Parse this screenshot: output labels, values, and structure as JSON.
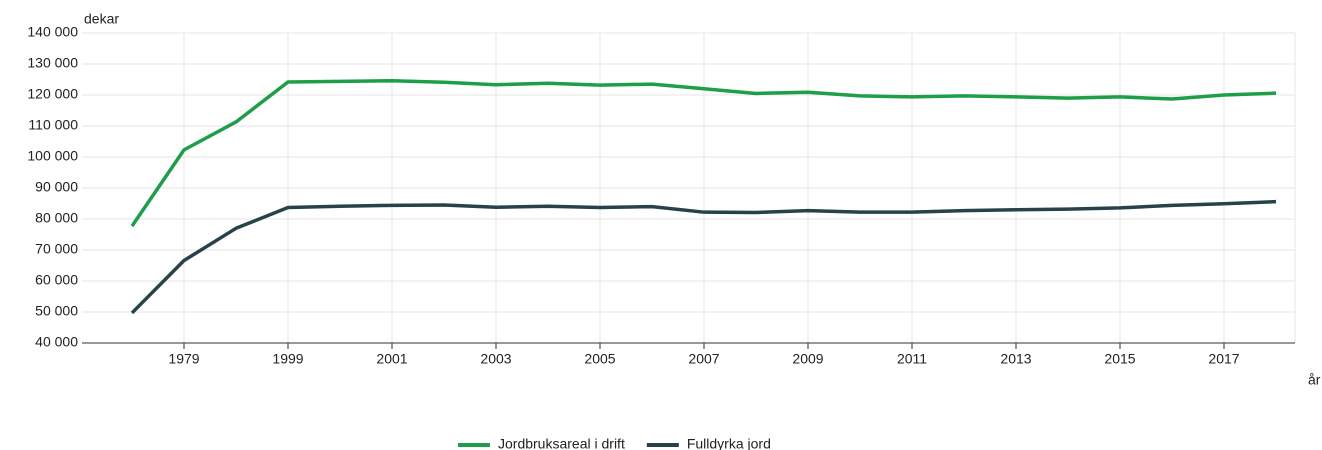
{
  "chart_data": {
    "type": "line",
    "y_label": "dekar",
    "x_label": "år",
    "categories": [
      null,
      "1979",
      null,
      "1999",
      null,
      "2001",
      null,
      "2003",
      null,
      "2005",
      null,
      "2007",
      null,
      "2009",
      null,
      "2011",
      null,
      "2013",
      null,
      "2015",
      null,
      "2017",
      null
    ],
    "series": [
      {
        "name": "Jordbruksareal i drift",
        "color": "#1f9e4a",
        "values": [
          77700,
          102300,
          111300,
          124200,
          124400,
          124600,
          124100,
          123300,
          123800,
          123200,
          123500,
          122000,
          120500,
          120900,
          119700,
          119400,
          119700,
          119400,
          119000,
          119400,
          118700,
          120000,
          120600
        ]
      },
      {
        "name": "Fulldyrka jord",
        "color": "#27434a",
        "values": [
          49700,
          66600,
          77000,
          83700,
          84100,
          84400,
          84500,
          83800,
          84100,
          83700,
          84000,
          82200,
          82100,
          82700,
          82200,
          82200,
          82700,
          83000,
          83200,
          83600,
          84400,
          84900,
          85600
        ]
      }
    ],
    "ylim": [
      40000,
      140000
    ],
    "yticks": [
      {
        "value": 40000,
        "label": "40 000"
      },
      {
        "value": 50000,
        "label": "50 000"
      },
      {
        "value": 60000,
        "label": "60 000"
      },
      {
        "value": 70000,
        "label": "70 000"
      },
      {
        "value": 80000,
        "label": "80 000"
      },
      {
        "value": 90000,
        "label": "90 000"
      },
      {
        "value": 100000,
        "label": "100 000"
      },
      {
        "value": 110000,
        "label": "110 000"
      },
      {
        "value": 120000,
        "label": "120 000"
      },
      {
        "value": 130000,
        "label": "130 000"
      },
      {
        "value": 140000,
        "label": "140 000"
      }
    ],
    "grid": true,
    "legend": "bottom"
  }
}
